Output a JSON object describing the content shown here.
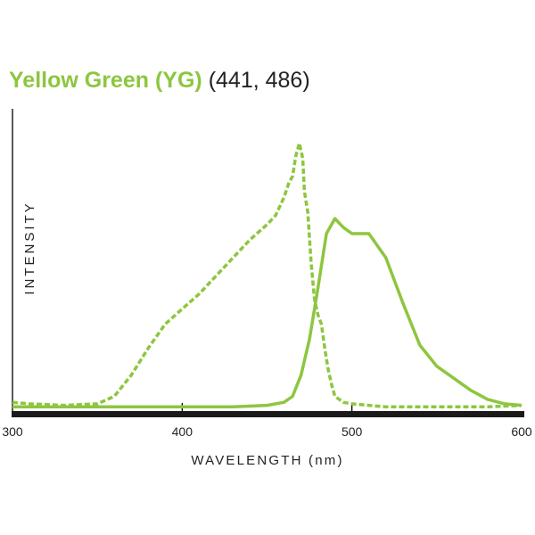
{
  "chart_data": {
    "type": "line",
    "title": "Yellow Green (YG)",
    "subtitle": "(441, 486)",
    "xlabel": "WAVELENGTH (nm)",
    "ylabel": "INTENSITY",
    "xlim": [
      300,
      600
    ],
    "ylim": [
      0,
      100
    ],
    "x_ticks": [
      "300",
      "400",
      "500",
      "600"
    ],
    "grid": false,
    "colors": {
      "title": "#8dc63f",
      "series": "#8dc63f",
      "axis": "#000000",
      "baseline": "#1a1a1a"
    },
    "series": [
      {
        "style": "dashed",
        "x": [
          300,
          310,
          330,
          350,
          360,
          370,
          380,
          390,
          400,
          410,
          420,
          430,
          440,
          450,
          455,
          460,
          463,
          465,
          467,
          469,
          471,
          472,
          474,
          476,
          478,
          480,
          482,
          484,
          486,
          488,
          490,
          495,
          500,
          510,
          520,
          530,
          540,
          560,
          580,
          600
        ],
        "y": [
          2,
          1.5,
          1,
          1.5,
          4,
          11,
          20,
          28,
          33,
          38,
          44,
          50,
          56,
          61,
          64,
          70,
          75,
          77,
          84,
          88,
          83,
          72,
          65,
          48,
          36,
          31,
          28,
          20,
          13,
          8,
          4,
          2,
          1.5,
          1,
          0.5,
          0.5,
          0.5,
          0.5,
          0.5,
          1
        ]
      },
      {
        "style": "solid",
        "x": [
          300,
          350,
          400,
          430,
          450,
          460,
          465,
          470,
          475,
          480,
          485,
          490,
          495,
          500,
          510,
          520,
          530,
          540,
          550,
          560,
          570,
          580,
          590,
          600
        ],
        "y": [
          0.5,
          0.5,
          0.5,
          0.5,
          1,
          2,
          4,
          11,
          23,
          40,
          58,
          63,
          60,
          58,
          58,
          50,
          35,
          21,
          14,
          10,
          6,
          3,
          1.5,
          1
        ]
      }
    ]
  }
}
